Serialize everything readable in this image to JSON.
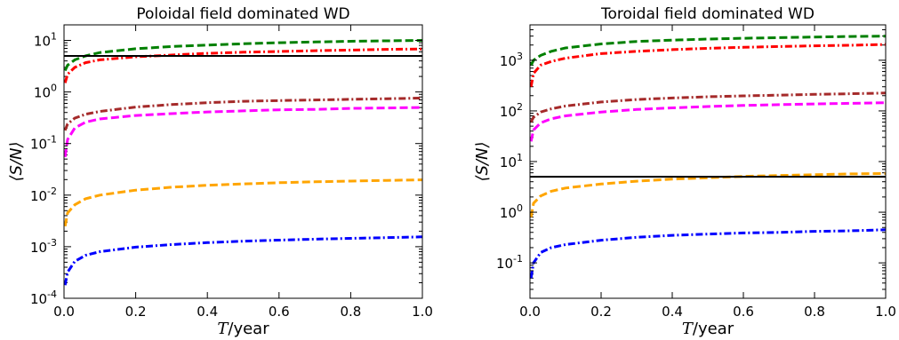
{
  "chart_data": [
    {
      "type": "line",
      "title": "Poloidal field dominated WD",
      "xlabel": "T/year",
      "ylabel": "⟨S/N⟩",
      "xlim": [
        0.0,
        1.0
      ],
      "ylim": [
        0.0001,
        20
      ],
      "y_scale": "log",
      "x_ticks": [
        "0.0",
        "0.2",
        "0.4",
        "0.6",
        "0.8",
        "1.0"
      ],
      "y_ticks": [
        {
          "value": 0.0001,
          "mant": "10",
          "exp": "-4"
        },
        {
          "value": 0.001,
          "mant": "10",
          "exp": "-3"
        },
        {
          "value": 0.01,
          "mant": "10",
          "exp": "-2"
        },
        {
          "value": 0.1,
          "mant": "10",
          "exp": "-1"
        },
        {
          "value": 1,
          "mant": "10",
          "exp": "0"
        },
        {
          "value": 10,
          "mant": "10",
          "exp": "1"
        }
      ],
      "threshold": 5,
      "threshold_color": "#000000",
      "series": [
        {
          "color": "#008000",
          "style": "dashed",
          "values": [
            {
              "x": 0.003,
              "y": 2.6
            },
            {
              "x": 0.01,
              "y": 3.3
            },
            {
              "x": 0.03,
              "y": 4.2
            },
            {
              "x": 0.06,
              "y": 5.0
            },
            {
              "x": 0.1,
              "y": 5.8
            },
            {
              "x": 0.2,
              "y": 6.9
            },
            {
              "x": 0.3,
              "y": 7.6
            },
            {
              "x": 0.4,
              "y": 8.1
            },
            {
              "x": 0.5,
              "y": 8.6
            },
            {
              "x": 0.6,
              "y": 9.0
            },
            {
              "x": 0.7,
              "y": 9.3
            },
            {
              "x": 0.8,
              "y": 9.6
            },
            {
              "x": 0.9,
              "y": 9.8
            },
            {
              "x": 1.0,
              "y": 10.0
            }
          ]
        },
        {
          "color": "#ff0000",
          "style": "dashdot",
          "values": [
            {
              "x": 0.003,
              "y": 1.5
            },
            {
              "x": 0.01,
              "y": 2.2
            },
            {
              "x": 0.03,
              "y": 3.0
            },
            {
              "x": 0.06,
              "y": 3.7
            },
            {
              "x": 0.1,
              "y": 4.2
            },
            {
              "x": 0.2,
              "y": 4.8
            },
            {
              "x": 0.3,
              "y": 5.2
            },
            {
              "x": 0.4,
              "y": 5.6
            },
            {
              "x": 0.5,
              "y": 5.9
            },
            {
              "x": 0.6,
              "y": 6.1
            },
            {
              "x": 0.7,
              "y": 6.3
            },
            {
              "x": 0.8,
              "y": 6.5
            },
            {
              "x": 0.9,
              "y": 6.7
            },
            {
              "x": 1.0,
              "y": 6.8
            }
          ]
        },
        {
          "color": "#a52a2a",
          "style": "dashdot",
          "values": [
            {
              "x": 0.003,
              "y": 0.18
            },
            {
              "x": 0.01,
              "y": 0.24
            },
            {
              "x": 0.03,
              "y": 0.31
            },
            {
              "x": 0.06,
              "y": 0.37
            },
            {
              "x": 0.1,
              "y": 0.42
            },
            {
              "x": 0.2,
              "y": 0.51
            },
            {
              "x": 0.3,
              "y": 0.57
            },
            {
              "x": 0.4,
              "y": 0.62
            },
            {
              "x": 0.5,
              "y": 0.66
            },
            {
              "x": 0.6,
              "y": 0.68
            },
            {
              "x": 0.7,
              "y": 0.7
            },
            {
              "x": 0.8,
              "y": 0.72
            },
            {
              "x": 0.9,
              "y": 0.74
            },
            {
              "x": 1.0,
              "y": 0.76
            }
          ]
        },
        {
          "color": "#ff00ff",
          "style": "dashed",
          "values": [
            {
              "x": 0.003,
              "y": 0.055
            },
            {
              "x": 0.01,
              "y": 0.12
            },
            {
              "x": 0.03,
              "y": 0.2
            },
            {
              "x": 0.06,
              "y": 0.26
            },
            {
              "x": 0.1,
              "y": 0.3
            },
            {
              "x": 0.2,
              "y": 0.35
            },
            {
              "x": 0.3,
              "y": 0.38
            },
            {
              "x": 0.4,
              "y": 0.41
            },
            {
              "x": 0.5,
              "y": 0.43
            },
            {
              "x": 0.6,
              "y": 0.45
            },
            {
              "x": 0.7,
              "y": 0.46
            },
            {
              "x": 0.8,
              "y": 0.48
            },
            {
              "x": 0.9,
              "y": 0.49
            },
            {
              "x": 1.0,
              "y": 0.5
            }
          ]
        },
        {
          "color": "#ffa500",
          "style": "dashed",
          "values": [
            {
              "x": 0.003,
              "y": 0.0025
            },
            {
              "x": 0.01,
              "y": 0.0045
            },
            {
              "x": 0.03,
              "y": 0.0065
            },
            {
              "x": 0.06,
              "y": 0.0085
            },
            {
              "x": 0.1,
              "y": 0.01
            },
            {
              "x": 0.2,
              "y": 0.0125
            },
            {
              "x": 0.3,
              "y": 0.0142
            },
            {
              "x": 0.4,
              "y": 0.0155
            },
            {
              "x": 0.5,
              "y": 0.0165
            },
            {
              "x": 0.6,
              "y": 0.0174
            },
            {
              "x": 0.7,
              "y": 0.0181
            },
            {
              "x": 0.8,
              "y": 0.0187
            },
            {
              "x": 0.9,
              "y": 0.0193
            },
            {
              "x": 1.0,
              "y": 0.0198
            }
          ]
        },
        {
          "color": "#0000ff",
          "style": "dashdot",
          "values": [
            {
              "x": 0.003,
              "y": 0.00018
            },
            {
              "x": 0.01,
              "y": 0.00032
            },
            {
              "x": 0.03,
              "y": 0.00052
            },
            {
              "x": 0.06,
              "y": 0.00068
            },
            {
              "x": 0.1,
              "y": 0.0008
            },
            {
              "x": 0.2,
              "y": 0.00098
            },
            {
              "x": 0.3,
              "y": 0.0011
            },
            {
              "x": 0.4,
              "y": 0.0012
            },
            {
              "x": 0.5,
              "y": 0.00128
            },
            {
              "x": 0.6,
              "y": 0.00134
            },
            {
              "x": 0.7,
              "y": 0.0014
            },
            {
              "x": 0.8,
              "y": 0.00145
            },
            {
              "x": 0.9,
              "y": 0.0015
            },
            {
              "x": 1.0,
              "y": 0.00155
            }
          ]
        }
      ]
    },
    {
      "type": "line",
      "title": "Toroidal field dominated WD",
      "xlabel": "T/year",
      "ylabel": "⟨S/N⟩",
      "xlim": [
        0.0,
        1.0
      ],
      "ylim": [
        0.02,
        5000
      ],
      "y_scale": "log",
      "x_ticks": [
        "0.0",
        "0.2",
        "0.4",
        "0.6",
        "0.8",
        "1.0"
      ],
      "y_ticks": [
        {
          "value": 0.1,
          "mant": "10",
          "exp": "-1"
        },
        {
          "value": 1,
          "mant": "10",
          "exp": "0"
        },
        {
          "value": 10,
          "mant": "10",
          "exp": "1"
        },
        {
          "value": 100,
          "mant": "10",
          "exp": "2"
        },
        {
          "value": 1000,
          "mant": "10",
          "exp": "3"
        }
      ],
      "threshold": 5,
      "threshold_color": "#000000",
      "series": [
        {
          "color": "#008000",
          "style": "dashed",
          "values": [
            {
              "x": 0.003,
              "y": 800
            },
            {
              "x": 0.01,
              "y": 1000
            },
            {
              "x": 0.03,
              "y": 1250
            },
            {
              "x": 0.06,
              "y": 1500
            },
            {
              "x": 0.1,
              "y": 1750
            },
            {
              "x": 0.2,
              "y": 2100
            },
            {
              "x": 0.3,
              "y": 2350
            },
            {
              "x": 0.4,
              "y": 2500
            },
            {
              "x": 0.5,
              "y": 2620
            },
            {
              "x": 0.6,
              "y": 2720
            },
            {
              "x": 0.7,
              "y": 2800
            },
            {
              "x": 0.8,
              "y": 2880
            },
            {
              "x": 0.9,
              "y": 2950
            },
            {
              "x": 1.0,
              "y": 3000
            }
          ]
        },
        {
          "color": "#ff0000",
          "style": "dashdot",
          "values": [
            {
              "x": 0.003,
              "y": 300
            },
            {
              "x": 0.01,
              "y": 550
            },
            {
              "x": 0.03,
              "y": 800
            },
            {
              "x": 0.06,
              "y": 950
            },
            {
              "x": 0.1,
              "y": 1100
            },
            {
              "x": 0.2,
              "y": 1350
            },
            {
              "x": 0.3,
              "y": 1500
            },
            {
              "x": 0.4,
              "y": 1620
            },
            {
              "x": 0.5,
              "y": 1720
            },
            {
              "x": 0.6,
              "y": 1800
            },
            {
              "x": 0.7,
              "y": 1870
            },
            {
              "x": 0.8,
              "y": 1930
            },
            {
              "x": 0.9,
              "y": 1980
            },
            {
              "x": 1.0,
              "y": 2050
            }
          ]
        },
        {
          "color": "#a52a2a",
          "style": "dashdot",
          "values": [
            {
              "x": 0.003,
              "y": 60
            },
            {
              "x": 0.01,
              "y": 75
            },
            {
              "x": 0.03,
              "y": 95
            },
            {
              "x": 0.06,
              "y": 110
            },
            {
              "x": 0.1,
              "y": 125
            },
            {
              "x": 0.2,
              "y": 150
            },
            {
              "x": 0.3,
              "y": 168
            },
            {
              "x": 0.4,
              "y": 180
            },
            {
              "x": 0.5,
              "y": 190
            },
            {
              "x": 0.6,
              "y": 198
            },
            {
              "x": 0.7,
              "y": 205
            },
            {
              "x": 0.8,
              "y": 212
            },
            {
              "x": 0.9,
              "y": 218
            },
            {
              "x": 1.0,
              "y": 225
            }
          ]
        },
        {
          "color": "#ff00ff",
          "style": "dashed",
          "values": [
            {
              "x": 0.003,
              "y": 25
            },
            {
              "x": 0.01,
              "y": 42
            },
            {
              "x": 0.03,
              "y": 58
            },
            {
              "x": 0.06,
              "y": 70
            },
            {
              "x": 0.1,
              "y": 80
            },
            {
              "x": 0.2,
              "y": 95
            },
            {
              "x": 0.3,
              "y": 107
            },
            {
              "x": 0.4,
              "y": 115
            },
            {
              "x": 0.5,
              "y": 122
            },
            {
              "x": 0.6,
              "y": 128
            },
            {
              "x": 0.7,
              "y": 133
            },
            {
              "x": 0.8,
              "y": 137
            },
            {
              "x": 0.9,
              "y": 141
            },
            {
              "x": 1.0,
              "y": 145
            }
          ]
        },
        {
          "color": "#ffa500",
          "style": "dashed",
          "values": [
            {
              "x": 0.003,
              "y": 0.8
            },
            {
              "x": 0.01,
              "y": 1.5
            },
            {
              "x": 0.03,
              "y": 2.1
            },
            {
              "x": 0.06,
              "y": 2.6
            },
            {
              "x": 0.1,
              "y": 3.0
            },
            {
              "x": 0.2,
              "y": 3.6
            },
            {
              "x": 0.3,
              "y": 4.1
            },
            {
              "x": 0.4,
              "y": 4.5
            },
            {
              "x": 0.5,
              "y": 4.8
            },
            {
              "x": 0.6,
              "y": 5.1
            },
            {
              "x": 0.7,
              "y": 5.3
            },
            {
              "x": 0.8,
              "y": 5.5
            },
            {
              "x": 0.9,
              "y": 5.7
            },
            {
              "x": 1.0,
              "y": 5.8
            }
          ]
        },
        {
          "color": "#0000ff",
          "style": "dashdot",
          "values": [
            {
              "x": 0.003,
              "y": 0.05
            },
            {
              "x": 0.01,
              "y": 0.1
            },
            {
              "x": 0.03,
              "y": 0.16
            },
            {
              "x": 0.06,
              "y": 0.2
            },
            {
              "x": 0.1,
              "y": 0.23
            },
            {
              "x": 0.2,
              "y": 0.28
            },
            {
              "x": 0.3,
              "y": 0.32
            },
            {
              "x": 0.4,
              "y": 0.35
            },
            {
              "x": 0.5,
              "y": 0.37
            },
            {
              "x": 0.6,
              "y": 0.39
            },
            {
              "x": 0.7,
              "y": 0.4
            },
            {
              "x": 0.8,
              "y": 0.42
            },
            {
              "x": 0.9,
              "y": 0.43
            },
            {
              "x": 1.0,
              "y": 0.45
            }
          ]
        }
      ]
    }
  ]
}
